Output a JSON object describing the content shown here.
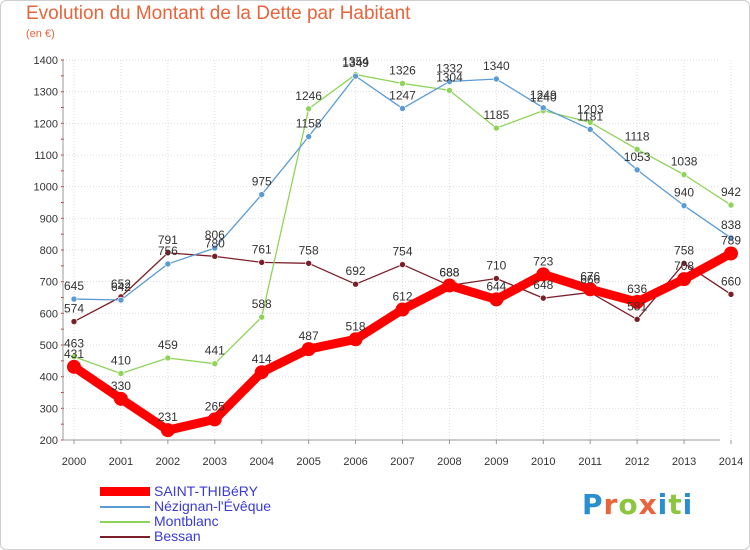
{
  "page": {
    "title": "Evolution du Montant de la Dette par Habitant",
    "unit": "(en €)",
    "logo": [
      "P",
      "r",
      "o",
      "x",
      "i",
      "t",
      "i"
    ],
    "logo_colors": [
      "#2a8fd0",
      "#e8643a",
      "#8cc63f",
      "#e8643a",
      "#2a8fd0",
      "#8cc63f",
      "#2a8fd0"
    ]
  },
  "chart_data": {
    "type": "line",
    "title": "Evolution du Montant de la Dette par Habitant",
    "ylabel": "(en €)",
    "xlabel": "",
    "ylim": [
      200,
      1400
    ],
    "yticks": [
      200,
      300,
      400,
      500,
      600,
      700,
      800,
      900,
      1000,
      1100,
      1200,
      1300,
      1400
    ],
    "x": [
      "2000",
      "2001",
      "2002",
      "2003",
      "2004",
      "2005",
      "2006",
      "2007",
      "2008",
      "2009",
      "2010",
      "2011",
      "2012",
      "2013",
      "2014"
    ],
    "grid": true,
    "legend_position": "bottom-left",
    "series": [
      {
        "name": "Bessan",
        "color": "#7a1f2a",
        "values": [
          574,
          652,
          791,
          780,
          761,
          758,
          692,
          754,
          688,
          710,
          648,
          666,
          581,
          758,
          660
        ]
      },
      {
        "name": "Montblanc",
        "color": "#8fd45a",
        "values": [
          463,
          410,
          459,
          441,
          588,
          1246,
          1354,
          1326,
          1304,
          1185,
          1240,
          1203,
          1118,
          1038,
          942
        ]
      },
      {
        "name": "Nézignan-l'Évêque",
        "color": "#5b9bd5",
        "values": [
          645,
          642,
          756,
          806,
          975,
          1158,
          1349,
          1247,
          1332,
          1340,
          1249,
          1181,
          1053,
          940,
          838
        ]
      },
      {
        "name": "SAINT-THIBéRY",
        "color": "#ff0000",
        "values": [
          431,
          330,
          231,
          265,
          414,
          487,
          518,
          612,
          688,
          644,
          723,
          676,
          636,
          708,
          789
        ]
      }
    ]
  }
}
